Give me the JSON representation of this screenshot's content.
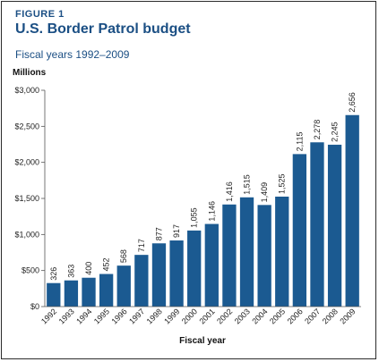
{
  "figure_label": "FIGURE 1",
  "chart_data": {
    "type": "bar",
    "title": "U.S. Border Patrol budget",
    "subtitle": "Fiscal years 1992–2009",
    "ylabel": "Millions",
    "xlabel": "Fiscal year",
    "categories": [
      "1992",
      "1993",
      "1994",
      "1995",
      "1996",
      "1997",
      "1998",
      "1999",
      "2000",
      "2001",
      "2002",
      "2003",
      "2004",
      "2005",
      "2006",
      "2007",
      "2008",
      "2009"
    ],
    "values": [
      326,
      363,
      400,
      452,
      568,
      717,
      877,
      917,
      1055,
      1146,
      1416,
      1515,
      1409,
      1525,
      2115,
      2278,
      2245,
      2656
    ],
    "value_labels": [
      "326",
      "363",
      "400",
      "452",
      "568",
      "717",
      "877",
      "917",
      "1,055",
      "1,146",
      "1,416",
      "1,515",
      "1,409",
      "1,525",
      "2,115",
      "2,278",
      "2,245",
      "2,656"
    ],
    "ylim": [
      0,
      3000
    ],
    "yticks": [
      0,
      500,
      1000,
      1500,
      2000,
      2500,
      3000
    ],
    "ytick_labels": [
      "$0",
      "$500",
      "$1,000",
      "$1,500",
      "$2,000",
      "$2,500",
      "$3,000"
    ],
    "grid": false,
    "bar_color": "#1b5a91"
  }
}
